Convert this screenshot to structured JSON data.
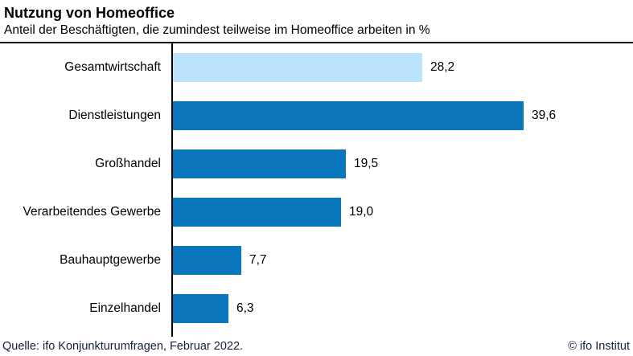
{
  "header": {
    "title": "Nutzung von Homeoffice",
    "subtitle": "Anteil der Beschäftigten, die zumindest teilweise im Homeoffice arbeiten in %"
  },
  "chart_data": {
    "type": "bar",
    "orientation": "horizontal",
    "title": "Nutzung von Homeoffice",
    "subtitle": "Anteil der Beschäftigten, die zumindest teilweise im Homeoffice arbeiten in %",
    "categories": [
      "Gesamtwirtschaft",
      "Dienstleistungen",
      "Großhandel",
      "Verarbeitendes Gewerbe",
      "Bauhauptgewerbe",
      "Einzelhandel"
    ],
    "values": [
      28.2,
      39.6,
      19.5,
      19.0,
      7.7,
      6.3
    ],
    "value_labels": [
      "28,2",
      "39,6",
      "19,5",
      "19,0",
      "7,7",
      "6,3"
    ],
    "bar_colors": [
      "#bbe3fb",
      "#0a77bd",
      "#0a77bd",
      "#0a77bd",
      "#0a77bd",
      "#0a77bd"
    ],
    "unit": "%",
    "decimal_separator": ",",
    "grid": false,
    "legend": false,
    "x_axis_ticks_visible": false,
    "xlim": [
      0,
      39.6
    ]
  },
  "footer": {
    "source": "Quelle: ifo Konjunkturumfragen, Februar 2022.",
    "copyright": "© ifo Institut"
  },
  "colors": {
    "bar_default": "#0a77bd",
    "bar_highlight": "#bbe3fb",
    "rule": "#000000",
    "text": "#000000",
    "footer_text": "#13213c"
  }
}
